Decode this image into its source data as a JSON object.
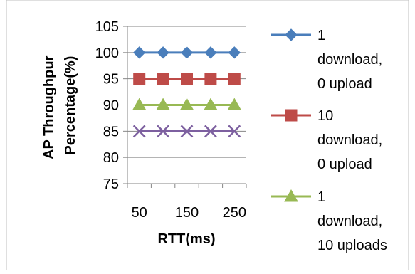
{
  "chart_data": {
    "type": "line",
    "title": "",
    "xlabel": "RTT(ms)",
    "ylabel_lines": [
      "AP Throughpur",
      "Percentage(%)"
    ],
    "x": [
      50,
      100,
      150,
      200,
      250
    ],
    "x_tick_labels": [
      "50",
      "150",
      "250"
    ],
    "x_tick_values": [
      50,
      150,
      250
    ],
    "ylim": [
      75,
      105
    ],
    "y_ticks": [
      75,
      80,
      85,
      90,
      95,
      100,
      105
    ],
    "grid": "horizontal",
    "legend_position": "right",
    "series": [
      {
        "name": "1 download, 0 upload",
        "legend_lines": [
          "1",
          "download,",
          "0 upload"
        ],
        "values": [
          100,
          100,
          100,
          100,
          100
        ],
        "color": "#4a7ebb",
        "marker": "diamond"
      },
      {
        "name": "10 download, 0 upload",
        "legend_lines": [
          "10",
          "download,",
          "0 upload"
        ],
        "values": [
          95,
          95,
          95,
          95,
          95
        ],
        "color": "#be4b48",
        "marker": "square"
      },
      {
        "name": "1 download, 10 uploads",
        "legend_lines": [
          "1",
          "download,",
          "10 uploads"
        ],
        "values": [
          90,
          90,
          90,
          90,
          90
        ],
        "color": "#98b954",
        "marker": "triangle"
      },
      {
        "values": [
          85,
          85,
          85,
          85,
          85
        ],
        "color": "#7d60a0",
        "marker": "x"
      }
    ]
  }
}
